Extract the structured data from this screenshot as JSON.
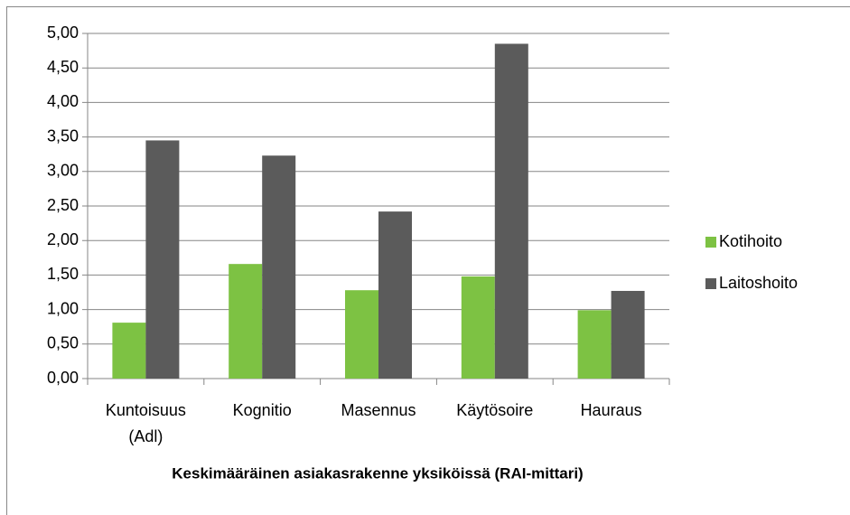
{
  "chart_data": {
    "type": "bar",
    "title": "Keskimääräinen asiakasrakenne yksiköissä (RAI-mittari)",
    "categories": [
      "Kuntoisuus (Adl)",
      "Kognitio",
      "Masennus",
      "Käytösoire",
      "Hauraus"
    ],
    "series": [
      {
        "name": "Kotihoito",
        "color": "#7dc243",
        "values": [
          0.81,
          1.66,
          1.28,
          1.48,
          0.99
        ]
      },
      {
        "name": "Laitoshoito",
        "color": "#5b5b5b",
        "values": [
          3.45,
          3.23,
          2.42,
          4.85,
          1.27
        ]
      }
    ],
    "ylim": [
      0,
      5
    ],
    "yticks": [
      {
        "value": 0,
        "label": "0,00"
      },
      {
        "value": 0.5,
        "label": "0,50"
      },
      {
        "value": 1,
        "label": "1,00"
      },
      {
        "value": 1.5,
        "label": "1,50"
      },
      {
        "value": 2,
        "label": "2,00"
      },
      {
        "value": 2.5,
        "label": "2,50"
      },
      {
        "value": 3,
        "label": "3,00"
      },
      {
        "value": 3.5,
        "label": "3,50"
      },
      {
        "value": 4,
        "label": "4,00"
      },
      {
        "value": 4.5,
        "label": "4,50"
      },
      {
        "value": 5,
        "label": "5,00"
      }
    ],
    "grid": true,
    "legend": "right"
  }
}
